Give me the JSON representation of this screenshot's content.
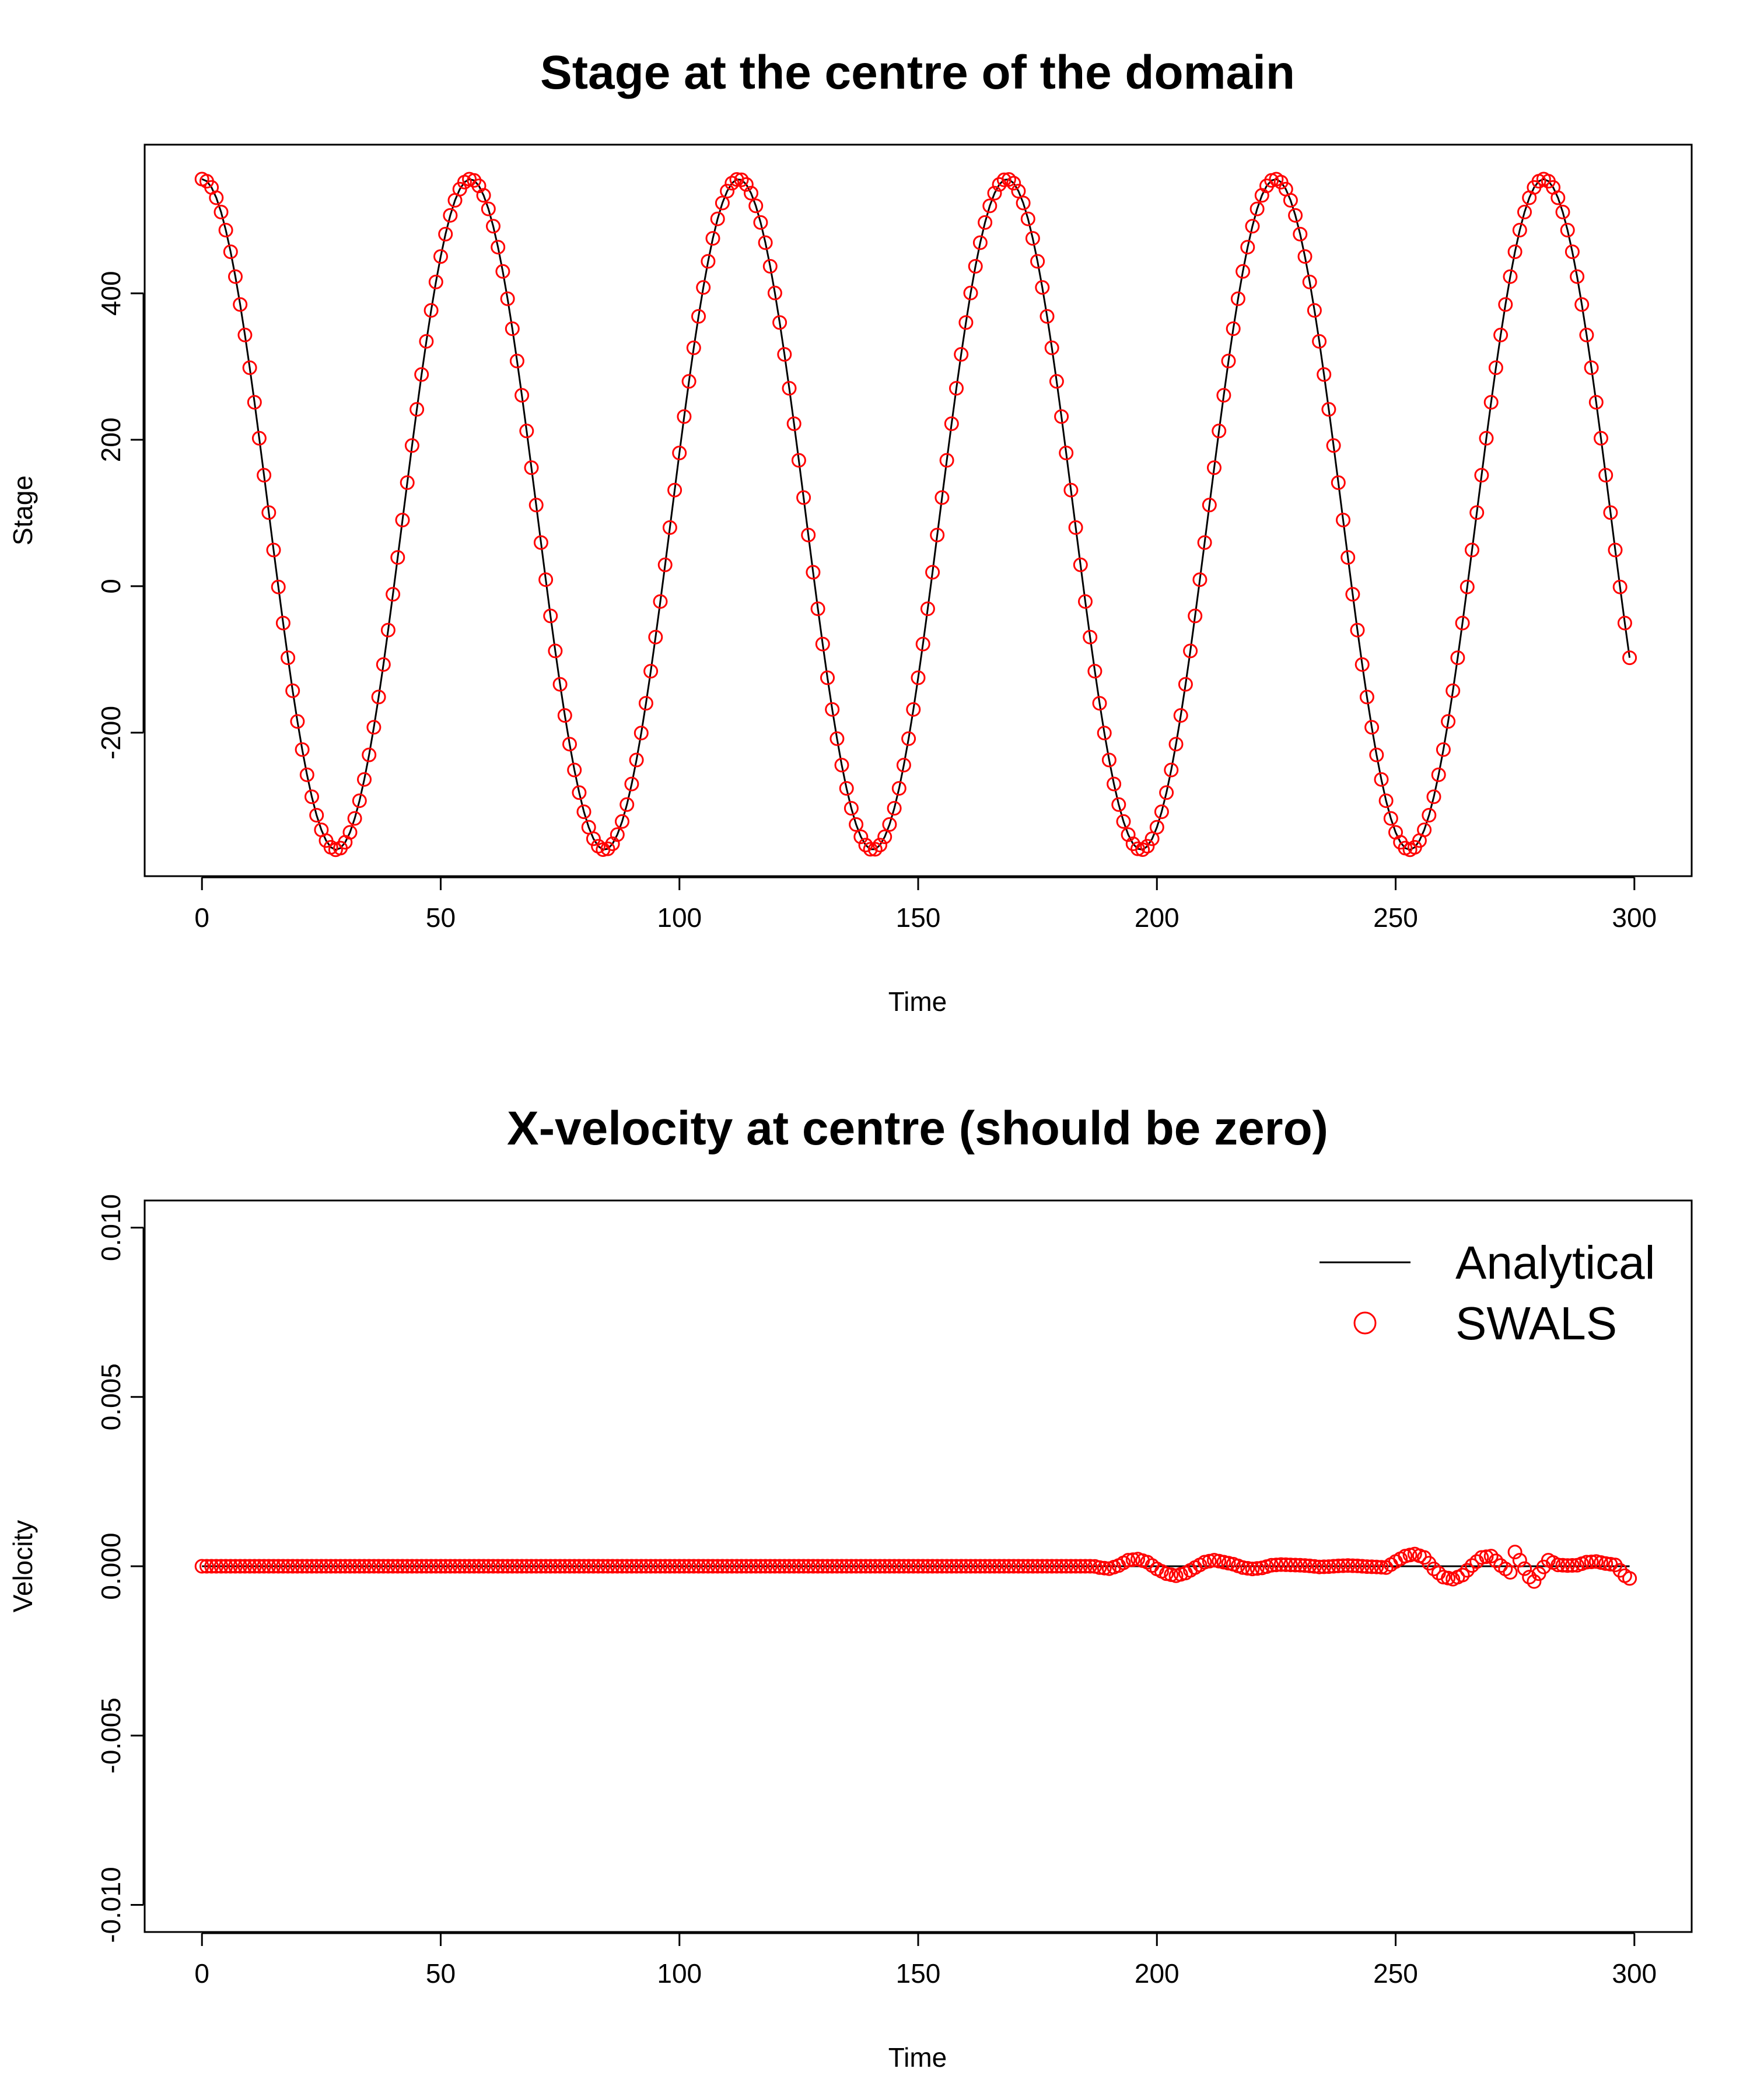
{
  "colors": {
    "analytical_line": "#000000",
    "swals_points": "#ff0000",
    "axis": "#000000"
  },
  "chart_data": [
    {
      "type": "scatter",
      "title": "Stage at the centre of the domain",
      "xlabel": "Time",
      "ylabel": "Stage",
      "xlim": [
        -12,
        312
      ],
      "ylim": [
        -396,
        603
      ],
      "xticks": [
        0,
        50,
        100,
        150,
        200,
        250,
        300
      ],
      "xtick_labels": [
        "0",
        "50",
        "100",
        "150",
        "200",
        "250",
        "300"
      ],
      "yticks": [
        -200,
        0,
        200,
        400
      ],
      "ytick_labels": [
        "-200",
        "0",
        "200",
        "400"
      ],
      "grid": false,
      "legend": null,
      "analytic": {
        "mean": 98,
        "amplitude": 458,
        "period": 56.2,
        "phase": 0,
        "t_start": 0,
        "t_end": 299,
        "t_step": 1
      },
      "series": [
        {
          "name": "Analytical",
          "style": "line",
          "values": []
        },
        {
          "name": "SWALS",
          "style": "points",
          "values": []
        }
      ]
    },
    {
      "type": "scatter",
      "title": "X-velocity at centre (should be zero)",
      "xlabel": "Time",
      "ylabel": "Velocity",
      "xlim": [
        -12,
        312
      ],
      "ylim": [
        -0.0108,
        0.0108
      ],
      "xticks": [
        0,
        50,
        100,
        150,
        200,
        250,
        300
      ],
      "xtick_labels": [
        "0",
        "50",
        "100",
        "150",
        "200",
        "250",
        "300"
      ],
      "yticks": [
        -0.01,
        -0.005,
        0.0,
        0.005,
        0.01
      ],
      "ytick_labels": [
        "-0.010",
        "-0.005",
        "0.000",
        "0.005",
        "0.010"
      ],
      "grid": false,
      "legend": {
        "position": "top-right",
        "entries": [
          {
            "label": "Analytical",
            "style": "line"
          },
          {
            "label": "SWALS",
            "style": "points"
          }
        ]
      },
      "series": [
        {
          "name": "Analytical",
          "style": "line",
          "x": [
            0,
            299
          ],
          "values": [
            0,
            0
          ]
        },
        {
          "name": "SWALS",
          "style": "points",
          "deviations": [
            [
              186,
              3e-05
            ],
            [
              188,
              -4e-05
            ],
            [
              190,
              -7e-05
            ],
            [
              192,
              2e-05
            ],
            [
              194,
              0.00018
            ],
            [
              196,
              0.00021
            ],
            [
              198,
              0.00012
            ],
            [
              200,
              -8e-05
            ],
            [
              202,
              -0.00022
            ],
            [
              204,
              -0.00028
            ],
            [
              206,
              -0.0002
            ],
            [
              208,
              -4e-05
            ],
            [
              210,
              0.00012
            ],
            [
              212,
              0.00018
            ],
            [
              214,
              0.00012
            ],
            [
              216,
              6e-05
            ],
            [
              218,
              -4e-05
            ],
            [
              220,
              -8e-05
            ],
            [
              222,
              -5e-05
            ],
            [
              224,
              3e-05
            ],
            [
              226,
              5e-05
            ],
            [
              228,
              4e-05
            ],
            [
              230,
              3e-05
            ],
            [
              232,
              1e-05
            ],
            [
              234,
              -2e-05
            ],
            [
              236,
              -1e-05
            ],
            [
              238,
              1e-05
            ],
            [
              240,
              2e-05
            ],
            [
              242,
              1e-05
            ],
            [
              244,
              -1e-05
            ],
            [
              246,
              -2e-05
            ],
            [
              248,
              -4e-05
            ],
            [
              250,
              0.00014
            ],
            [
              252,
              0.0003
            ],
            [
              254,
              0.00036
            ],
            [
              256,
              0.00026
            ],
            [
              258,
              -8e-05
            ],
            [
              260,
              -0.00032
            ],
            [
              262,
              -0.00038
            ],
            [
              264,
              -0.00026
            ],
            [
              266,
              2e-05
            ],
            [
              268,
              0.00026
            ],
            [
              270,
              0.0003
            ],
            [
              272,
              2e-05
            ],
            [
              274,
              -0.00018
            ],
            [
              275,
              0.00042
            ],
            [
              276,
              0.00018
            ],
            [
              278,
              -0.00032
            ],
            [
              279,
              -0.00045
            ],
            [
              280,
              -0.00022
            ],
            [
              282,
              0.00018
            ],
            [
              284,
              4e-05
            ],
            [
              286,
              2e-05
            ],
            [
              288,
              3e-05
            ],
            [
              290,
              0.00012
            ],
            [
              292,
              0.00014
            ],
            [
              294,
              8e-05
            ],
            [
              296,
              4e-05
            ],
            [
              297,
              -0.00012
            ],
            [
              298,
              -0.00028
            ],
            [
              299,
              -0.00036
            ]
          ],
          "values": []
        }
      ]
    }
  ]
}
